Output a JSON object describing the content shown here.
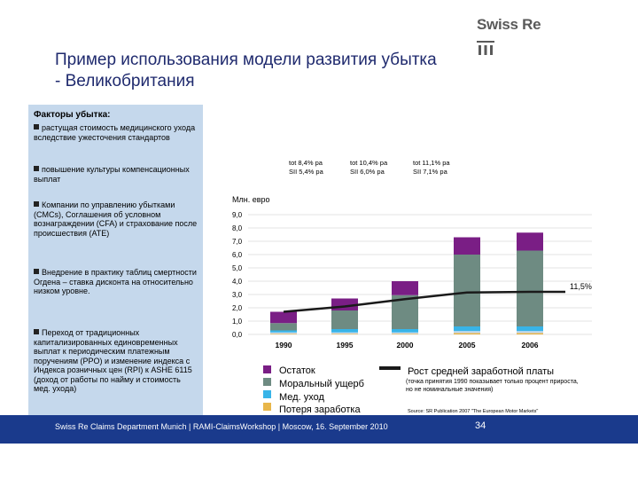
{
  "brand": {
    "name": "Swiss Re"
  },
  "title": "Пример использования модели развития убытка - Великобритания",
  "sidebar": {
    "heading": "Факторы убытка:",
    "items": [
      "растущая стоимость медицинского ухода вследствие ужесточения стандартов",
      "повышение культуры компенсационных выплат",
      "Компании по управлению убытками (CMCs), Соглашения об условном вознаграждении (CFA) и страхование после происшествия (ATE)",
      "Внедрение в практику таблиц смертности Огдена – ставка дисконта на относительно низком уровне.",
      "Переход от традиционных капитализированных единовременных выплат к периодическим платежным поручениям (PPO) и изменение индекса с Индекса розничных цен (RPI) к ASHE 6115 (доход от работы по найму и стоимость мед. ухода)"
    ]
  },
  "chart_data": {
    "type": "bar",
    "stacked": true,
    "unit_label": "Млн. евро",
    "categories": [
      "1990",
      "1995",
      "2000",
      "2005",
      "2006"
    ],
    "ylim": [
      0,
      9
    ],
    "yticks": [
      "0,0",
      "1,0",
      "2,0",
      "3,0",
      "4,0",
      "5,0",
      "6,0",
      "7,0",
      "8,0",
      "9,0"
    ],
    "series": [
      {
        "name": "Потеря заработка",
        "color": "#e8b64a",
        "values": [
          0.05,
          0.05,
          0.05,
          0.1,
          0.1
        ]
      },
      {
        "name": "Мед. уход",
        "color": "#c5d8ec",
        "values": [
          0.1,
          0.1,
          0.1,
          0.15,
          0.15
        ]
      },
      {
        "name": "Моральный ущерб",
        "color": "#38b4e8",
        "values": [
          0.15,
          0.25,
          0.25,
          0.35,
          0.35
        ]
      },
      {
        "name": "Остаток",
        "color": "#6e8b82",
        "values": [
          0.55,
          1.4,
          2.55,
          5.4,
          5.7
        ]
      },
      {
        "name": "Потеря заработка top",
        "color": "#7a1e85",
        "values": [
          0.85,
          0.9,
          1.05,
          1.3,
          1.35
        ]
      }
    ],
    "line": {
      "name": "Рост средней заработной платы",
      "color": "#1a1a1a",
      "values": [
        1.7,
        2.1,
        2.65,
        3.15,
        3.2
      ],
      "end_label": "11,5%"
    },
    "growth_notes": [
      {
        "line1": "tot    8,4% pa",
        "line2": "SII    5,4% pa"
      },
      {
        "line1": "tot    10,4% pa",
        "line2": "SII    6,0% pa"
      },
      {
        "line1": "tot    11,1% pa",
        "line2": "SII    7,1% pa"
      }
    ],
    "legend_note": "(точка принятия 1990 показывает только процент прироста, но не номинальные значения)",
    "source": "Source: SR Publication 2007 \"The European Motor Markets\""
  },
  "legend": {
    "items": [
      {
        "label": "Остаток",
        "color": "#7a1e85"
      },
      {
        "label": "Моральный ущерб",
        "color": "#6e8b82"
      },
      {
        "label": "Мед. уход",
        "color": "#38b4e8"
      },
      {
        "label": "Потеря заработка",
        "color": "#e8b64a"
      }
    ],
    "line_label": "Рост средней заработной платы"
  },
  "footer": {
    "text": "Swiss Re Claims Department Munich | RAMI-ClaimsWorkshop | Moscow, 16. September 2010",
    "page": "34"
  }
}
